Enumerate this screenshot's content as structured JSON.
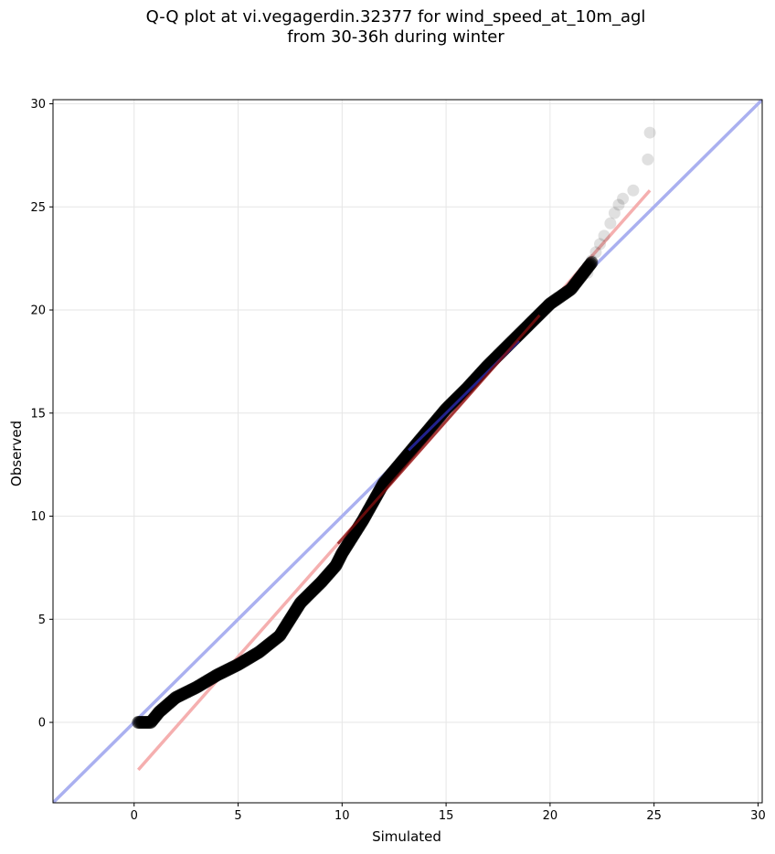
{
  "chart_data": {
    "type": "scatter",
    "title_line1": "Q-Q plot at vi.vegagerdin.32377 for wind_speed_at_10m_agl",
    "title_line2": "from 30-36h during winter",
    "xlabel": "Simulated",
    "ylabel": "Observed",
    "xlim": [
      -3.9,
      30.2
    ],
    "ylim": [
      -3.9,
      30.2
    ],
    "xticks": [
      0,
      5,
      10,
      15,
      20,
      25,
      30
    ],
    "yticks": [
      0,
      5,
      10,
      15,
      20,
      25,
      30
    ],
    "grid": true,
    "quantile_curve": [
      [
        0.2,
        0.0
      ],
      [
        0.8,
        0.0
      ],
      [
        1.2,
        0.5
      ],
      [
        2.0,
        1.2
      ],
      [
        3.0,
        1.7
      ],
      [
        4.0,
        2.3
      ],
      [
        5.0,
        2.8
      ],
      [
        6.0,
        3.4
      ],
      [
        7.0,
        4.2
      ],
      [
        8.0,
        5.8
      ],
      [
        9.0,
        6.8
      ],
      [
        9.7,
        7.6
      ],
      [
        10.0,
        8.2
      ],
      [
        11.0,
        9.8
      ],
      [
        12.0,
        11.6
      ],
      [
        13.0,
        12.8
      ],
      [
        14.0,
        14.0
      ],
      [
        15.0,
        15.2
      ],
      [
        16.0,
        16.2
      ],
      [
        17.0,
        17.3
      ],
      [
        18.0,
        18.3
      ],
      [
        19.0,
        19.3
      ],
      [
        20.0,
        20.3
      ],
      [
        21.0,
        21.0
      ],
      [
        22.0,
        22.3
      ]
    ],
    "tail_points": [
      [
        21.5,
        21.6
      ],
      [
        21.8,
        21.8
      ],
      [
        22.0,
        22.4
      ],
      [
        22.2,
        22.8
      ],
      [
        22.4,
        23.2
      ],
      [
        22.6,
        23.6
      ],
      [
        22.9,
        24.2
      ],
      [
        23.1,
        24.7
      ],
      [
        23.3,
        25.1
      ],
      [
        23.5,
        25.4
      ],
      [
        24.0,
        25.8
      ],
      [
        24.7,
        27.3
      ],
      [
        24.8,
        28.6
      ]
    ],
    "identity_line": {
      "from": [
        -3.9,
        -3.9
      ],
      "to": [
        30.2,
        30.2
      ],
      "color": "#aab0f0"
    },
    "fit_line": {
      "from": [
        0.2,
        -2.3
      ],
      "to": [
        24.8,
        25.8
      ],
      "color": "#f4a6a6"
    },
    "point_color": "#000000"
  }
}
